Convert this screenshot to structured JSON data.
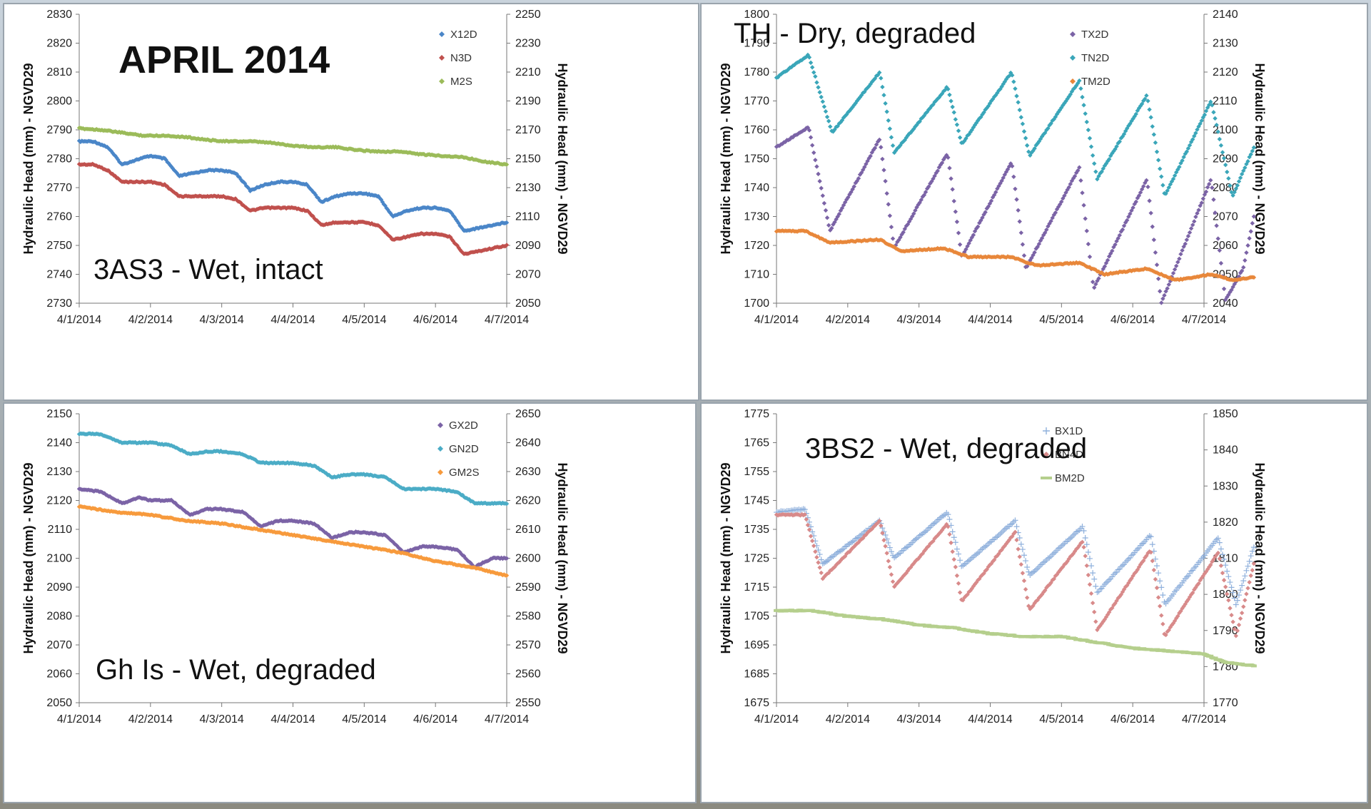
{
  "slide_title": "APRIL 2014",
  "chart_data": [
    {
      "type": "scatter",
      "site_label": "3AS3 - Wet, intact",
      "ylabel_left": "Hydraulic Head (mm) - NGVD29",
      "ylabel_right": "Hydraulic Head (mm) - NGVD29",
      "x_tick_labels": [
        "4/1/2014",
        "4/2/2014",
        "4/3/2014",
        "4/4/2014",
        "4/5/2014",
        "4/6/2014",
        "4/7/2014"
      ],
      "ylim_left": [
        2730,
        2830
      ],
      "ylim_right": [
        2050,
        2250
      ],
      "ytick_step_left": 10,
      "ytick_step_right": 20,
      "legend_position": "top-right",
      "series": [
        {
          "name": "X12D",
          "color": "#4a86c8",
          "marker": "diamond",
          "axis": "left",
          "x": [
            0,
            0.2,
            0.4,
            0.6,
            0.85,
            1.0,
            1.2,
            1.4,
            1.6,
            1.8,
            2.0,
            2.2,
            2.4,
            2.6,
            2.8,
            3.0,
            3.2,
            3.4,
            3.6,
            3.8,
            4.0,
            4.2,
            4.4,
            4.6,
            4.8,
            5.0,
            5.2,
            5.4,
            5.6,
            5.8,
            6.0
          ],
          "y": [
            2786,
            2786,
            2784,
            2778,
            2780,
            2781,
            2780,
            2774,
            2775,
            2776,
            2776,
            2775,
            2769,
            2771,
            2772,
            2772,
            2771,
            2765,
            2767,
            2768,
            2768,
            2767,
            2760,
            2762,
            2763,
            2763,
            2762,
            2755,
            2756,
            2757,
            2758
          ]
        },
        {
          "name": "N3D",
          "color": "#c0504d",
          "marker": "diamond",
          "axis": "left",
          "x": [
            0,
            0.2,
            0.4,
            0.6,
            0.85,
            1.0,
            1.2,
            1.4,
            1.6,
            1.8,
            2.0,
            2.2,
            2.4,
            2.6,
            2.8,
            3.0,
            3.2,
            3.4,
            3.6,
            3.8,
            4.0,
            4.2,
            4.4,
            4.6,
            4.8,
            5.0,
            5.2,
            5.4,
            5.6,
            5.8,
            6.0
          ],
          "y": [
            2778,
            2778,
            2776,
            2772,
            2772,
            2772,
            2771,
            2767,
            2767,
            2767,
            2767,
            2766,
            2762,
            2763,
            2763,
            2763,
            2762,
            2757,
            2758,
            2758,
            2758,
            2757,
            2752,
            2753,
            2754,
            2754,
            2753,
            2747,
            2748,
            2749,
            2750
          ]
        },
        {
          "name": "M2S",
          "color": "#9bbb59",
          "marker": "diamond",
          "axis": "right",
          "x": [
            0,
            0.3,
            0.6,
            0.9,
            1.2,
            1.5,
            1.8,
            2.1,
            2.4,
            2.7,
            3.0,
            3.3,
            3.6,
            3.9,
            4.2,
            4.5,
            4.8,
            5.1,
            5.4,
            5.7,
            6.0
          ],
          "y": [
            2171,
            2170,
            2168,
            2166,
            2166,
            2165,
            2163,
            2162,
            2162,
            2161,
            2159,
            2158,
            2158,
            2156,
            2155,
            2155,
            2153,
            2152,
            2151,
            2148,
            2146
          ]
        }
      ]
    },
    {
      "type": "scatter",
      "site_label": "TH - Dry, degraded",
      "ylabel_left": "Hydraulic Head (mm) - NGVD29",
      "ylabel_right": "Hydraulic Head (mm) - NGVD29",
      "x_tick_labels": [
        "4/1/2014",
        "4/2/2014",
        "4/3/2014",
        "4/4/2014",
        "4/5/2014",
        "4/6/2014",
        "4/7/2014"
      ],
      "ylim_left": [
        1700,
        1800
      ],
      "ylim_right": [
        2040,
        2140
      ],
      "ytick_step_left": 10,
      "ytick_step_right": 10,
      "legend_position": "top-right",
      "series": [
        {
          "name": "TX2D",
          "color": "#7b63a6",
          "marker": "diamond",
          "axis": "left",
          "x": [
            0,
            0.45,
            0.75,
            1.45,
            1.65,
            2.4,
            2.6,
            3.3,
            3.5,
            4.25,
            4.45,
            5.2,
            5.4,
            6.1,
            6.3,
            6.55,
            6.7
          ],
          "y": [
            1754,
            1761,
            1725,
            1757,
            1719,
            1752,
            1716,
            1749,
            1712,
            1747,
            1705,
            1743,
            1700,
            1743,
            1701,
            1712,
            1730
          ]
        },
        {
          "name": "TN2D",
          "color": "#3aa6b9",
          "marker": "diamond",
          "axis": "right",
          "x": [
            0,
            0.45,
            0.78,
            1.45,
            1.65,
            2.4,
            2.6,
            3.3,
            3.55,
            4.25,
            4.5,
            5.2,
            5.45,
            6.1,
            6.4,
            6.7
          ],
          "y": [
            2118,
            2126,
            2099,
            2120,
            2092,
            2115,
            2095,
            2120,
            2091,
            2117,
            2083,
            2112,
            2077,
            2110,
            2077,
            2094
          ]
        },
        {
          "name": "TM2D",
          "color": "#e8873a",
          "marker": "diamond",
          "axis": "left",
          "x": [
            0,
            0.4,
            0.75,
            1.45,
            1.75,
            2.35,
            2.7,
            3.3,
            3.65,
            4.25,
            4.6,
            5.2,
            5.6,
            6.1,
            6.4,
            6.7
          ],
          "y": [
            1725,
            1725,
            1721,
            1722,
            1718,
            1719,
            1716,
            1716,
            1713,
            1714,
            1710,
            1712,
            1708,
            1710,
            1708,
            1709
          ]
        }
      ]
    },
    {
      "type": "scatter",
      "site_label": "Gh Is - Wet, degraded",
      "ylabel_left": "Hydraulic Head (mm) - NGVD29",
      "ylabel_right": "Hydraulic Head (mm) - NGVD29",
      "x_tick_labels": [
        "4/1/2014",
        "4/2/2014",
        "4/3/2014",
        "4/4/2014",
        "4/5/2014",
        "4/6/2014",
        "4/7/2014"
      ],
      "ylim_left": [
        2050,
        2150
      ],
      "ylim_right": [
        2550,
        2650
      ],
      "ytick_step_left": 10,
      "ytick_step_right": 10,
      "legend_position": "top-right",
      "series": [
        {
          "name": "GX2D",
          "color": "#7b63a6",
          "marker": "diamond",
          "axis": "left",
          "x": [
            0,
            0.3,
            0.6,
            0.85,
            1.0,
            1.3,
            1.55,
            1.8,
            2.0,
            2.3,
            2.55,
            2.8,
            3.0,
            3.3,
            3.55,
            3.8,
            4.0,
            4.3,
            4.55,
            4.8,
            5.0,
            5.3,
            5.55,
            5.8,
            6.0
          ],
          "y": [
            2124,
            2123,
            2119,
            2121,
            2120,
            2120,
            2115,
            2117,
            2117,
            2116,
            2111,
            2113,
            2113,
            2112,
            2107,
            2109,
            2109,
            2108,
            2102,
            2104,
            2104,
            2103,
            2097,
            2100,
            2100
          ]
        },
        {
          "name": "GN2D",
          "color": "#4bacc6",
          "marker": "diamond",
          "axis": "left",
          "x": [
            0,
            0.3,
            0.6,
            0.85,
            1.0,
            1.3,
            1.55,
            1.8,
            2.0,
            2.3,
            2.55,
            2.8,
            3.0,
            3.3,
            3.55,
            3.8,
            4.0,
            4.3,
            4.55,
            4.8,
            5.0,
            5.3,
            5.55,
            5.8,
            6.0
          ],
          "y": [
            2143,
            2143,
            2140,
            2140,
            2140,
            2139,
            2136,
            2137,
            2137,
            2136,
            2133,
            2133,
            2133,
            2132,
            2128,
            2129,
            2129,
            2128,
            2124,
            2124,
            2124,
            2123,
            2119,
            2119,
            2119
          ]
        },
        {
          "name": "GM2S",
          "color": "#f79a3c",
          "marker": "diamond",
          "axis": "left",
          "x": [
            0,
            0.5,
            1.0,
            1.5,
            2.0,
            2.5,
            3.0,
            3.5,
            4.0,
            4.5,
            5.0,
            5.5,
            6.0
          ],
          "y": [
            2118,
            2116,
            2115,
            2113,
            2112,
            2110,
            2108,
            2106,
            2104,
            2102,
            2099,
            2097,
            2094
          ]
        }
      ]
    },
    {
      "type": "scatter",
      "site_label": "3BS2 - Wet, degraded",
      "ylabel_left": "Hydraulic Head (mm) - NGVD29",
      "ylabel_right": "Hydraulic Head (mm) - NGVD29",
      "x_tick_labels": [
        "4/1/2014",
        "4/2/2014",
        "4/3/2014",
        "4/4/2014",
        "4/5/2014",
        "4/6/2014",
        "4/7/2014"
      ],
      "ylim_left": [
        1675,
        1775
      ],
      "ylim_right": [
        1770,
        1850
      ],
      "ytick_step_left": 10,
      "ytick_step_right": 10,
      "legend_position": "top-right",
      "series": [
        {
          "name": "BX1D",
          "color": "#8fb0dc",
          "marker": "plus",
          "axis": "left",
          "x": [
            0,
            0.4,
            0.65,
            1.45,
            1.65,
            2.4,
            2.6,
            3.35,
            3.55,
            4.3,
            4.5,
            5.25,
            5.45,
            6.2,
            6.45,
            6.7
          ],
          "y": [
            1741,
            1742,
            1723,
            1738,
            1725,
            1741,
            1722,
            1738,
            1719,
            1736,
            1713,
            1733,
            1709,
            1732,
            1709,
            1729
          ]
        },
        {
          "name": "BN4D",
          "color": "#d88a8a",
          "marker": "diamond",
          "axis": "left",
          "x": [
            0,
            0.4,
            0.65,
            1.45,
            1.65,
            2.4,
            2.6,
            3.35,
            3.55,
            4.3,
            4.5,
            5.25,
            5.45,
            6.2,
            6.45,
            6.7
          ],
          "y": [
            1740,
            1740,
            1718,
            1738,
            1715,
            1737,
            1710,
            1734,
            1707,
            1731,
            1700,
            1728,
            1698,
            1727,
            1698,
            1723
          ]
        },
        {
          "name": "BM2D",
          "color": "#b5cf8d",
          "marker": "dash",
          "axis": "left",
          "x": [
            0,
            0.5,
            1.0,
            1.5,
            2.0,
            2.5,
            3.0,
            3.5,
            4.0,
            4.5,
            5.0,
            5.5,
            6.0,
            6.3,
            6.7
          ],
          "y": [
            1707,
            1707,
            1705,
            1704,
            1702,
            1701,
            1699,
            1698,
            1698,
            1696,
            1694,
            1693,
            1692,
            1689,
            1688
          ]
        }
      ]
    }
  ]
}
